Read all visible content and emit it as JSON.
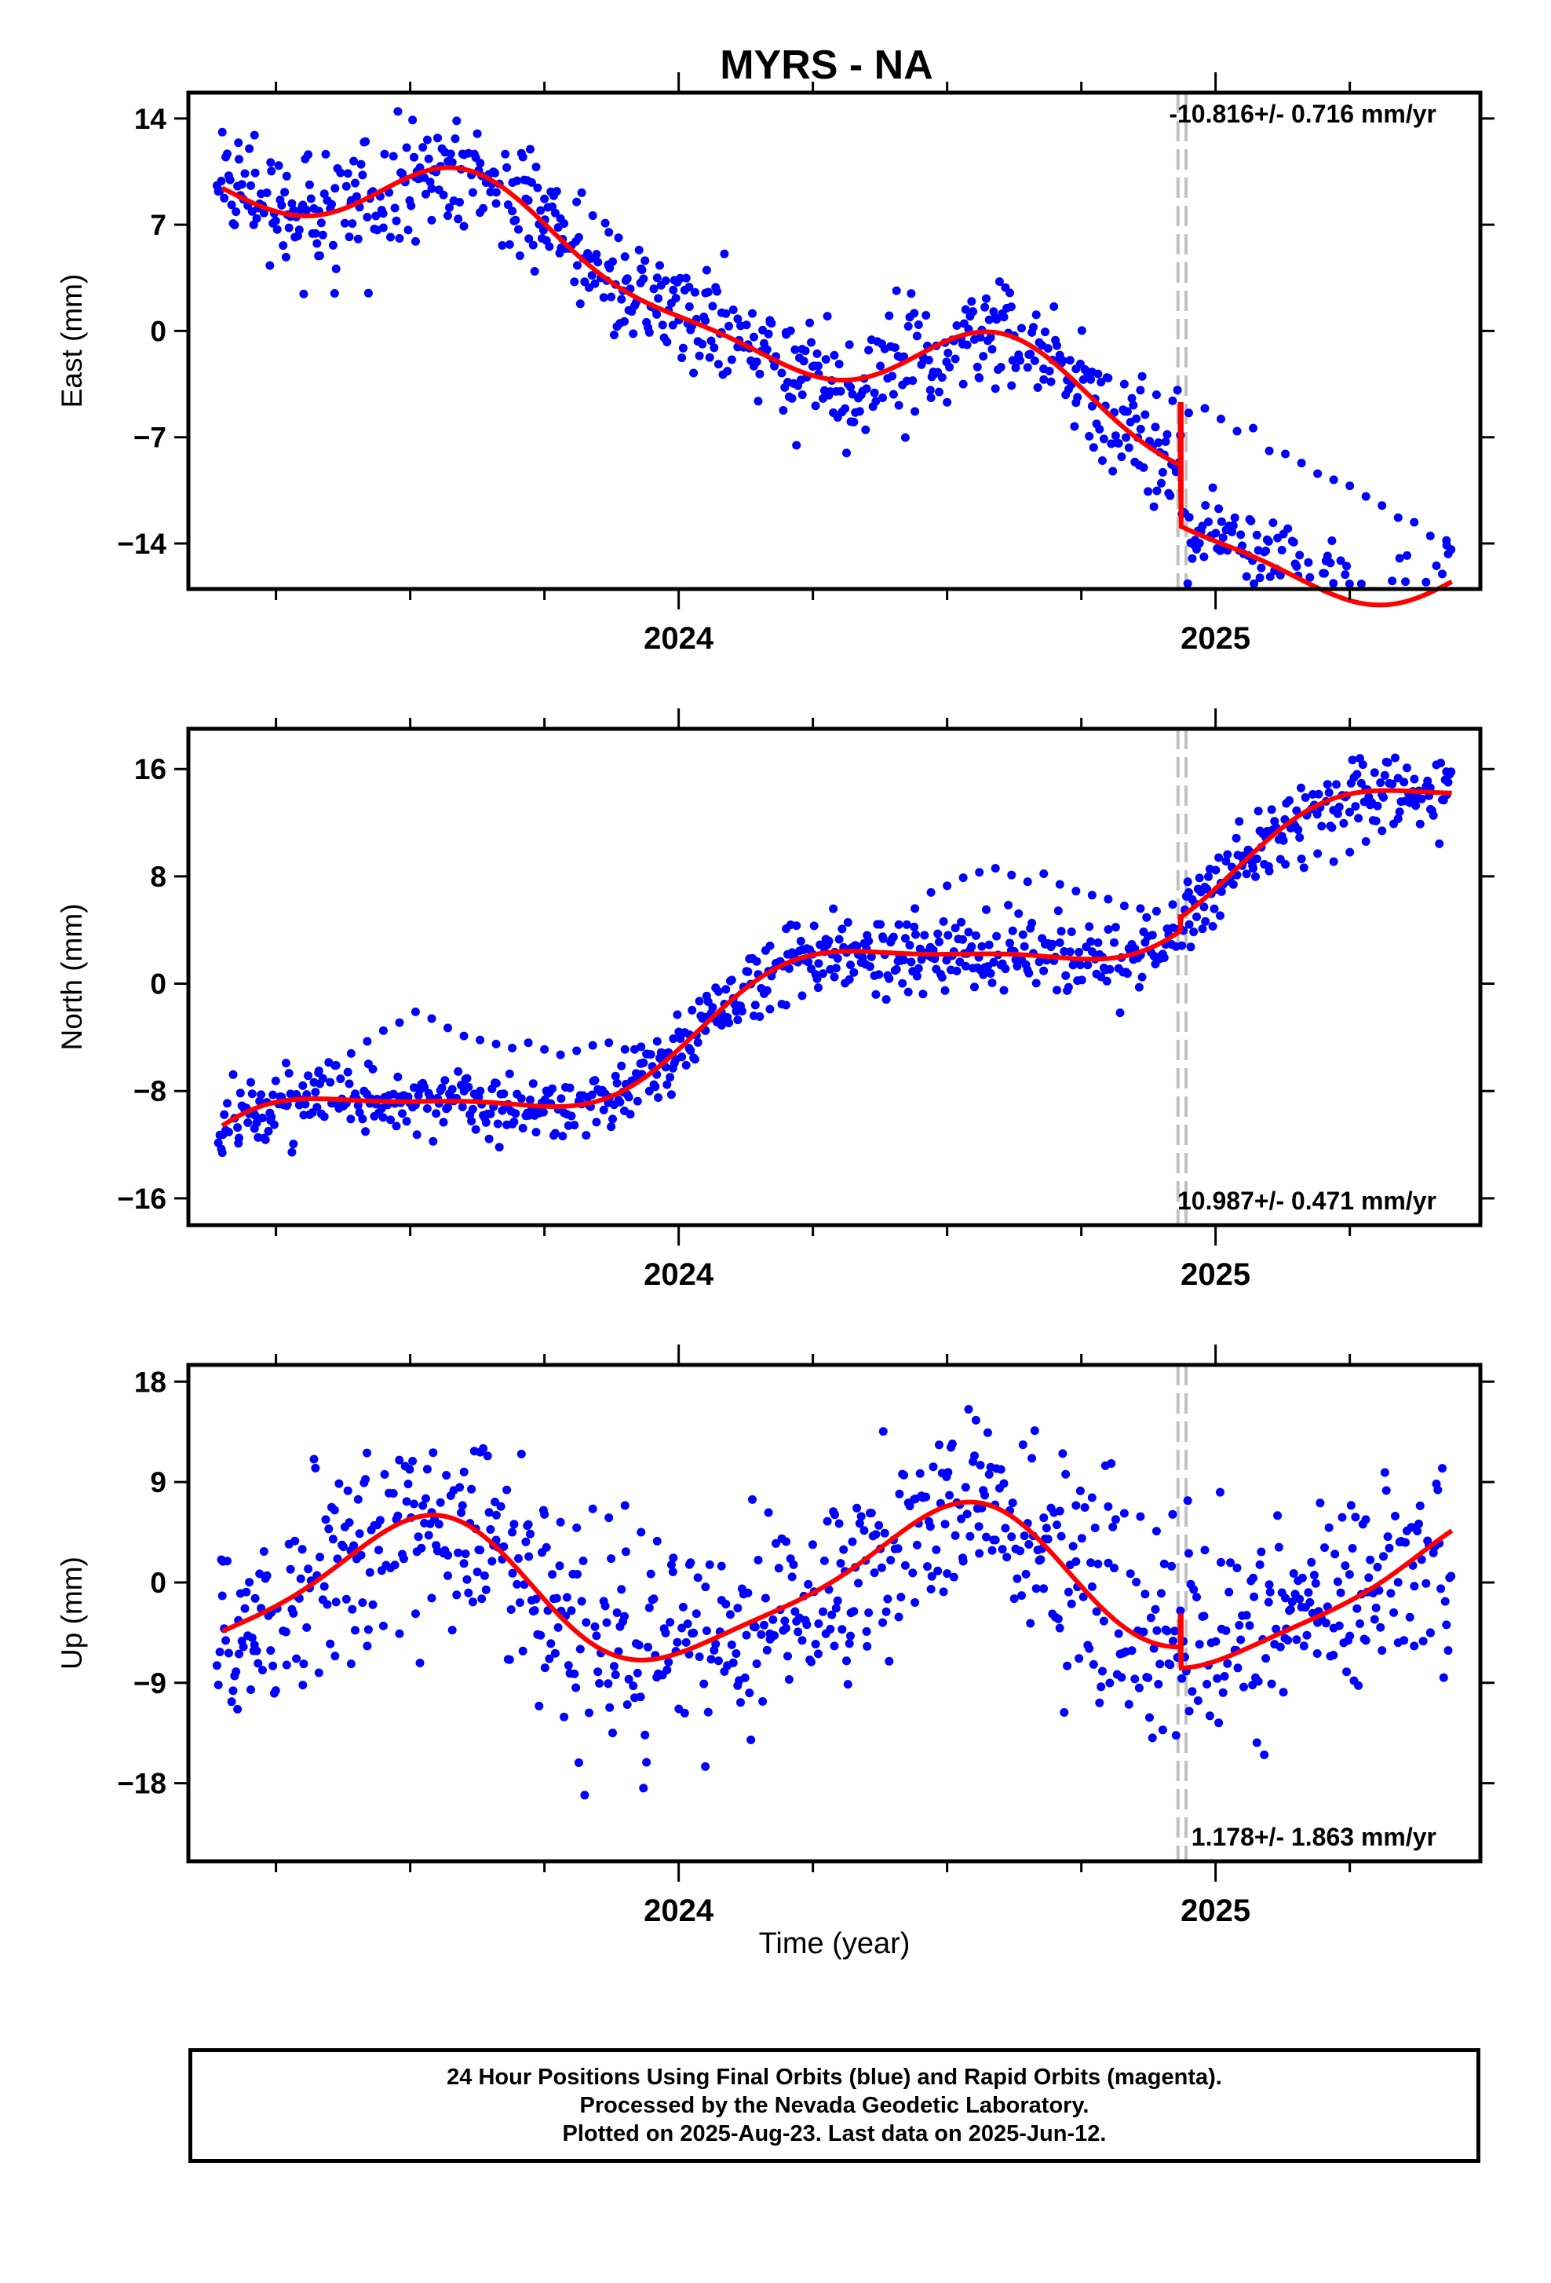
{
  "title": "MYRS - NA",
  "xlabel": "Time (year)",
  "footer": {
    "line1": "24 Hour Positions Using Final Orbits (blue) and Rapid Orbits (magenta).",
    "line2": "Processed by the Nevada Geodetic Laboratory.",
    "line3": "Plotted on 2025-Aug-23. Last data on 2025-Jun-12."
  },
  "colors": {
    "final_orbits": "#0000ff",
    "model_fit": "#ff0000",
    "equipment_change": "#c0c0c0",
    "axes": "#000000"
  },
  "chart_data": [
    {
      "type": "scatter",
      "component": "East",
      "ylabel": "East (mm)",
      "xlim": [
        2023.1,
        2025.48
      ],
      "ylim": [
        -17,
        15.7
      ],
      "yticks": [
        14,
        7,
        0,
        -7,
        -14
      ],
      "xticks": [
        2024,
        2025
      ],
      "grid": false,
      "rate_label": "-10.816+/- 0.716 mm/yr",
      "rate_position": "top-right",
      "equipment_change": [
        2024.93,
        2024.945
      ],
      "trend": {
        "slope": -10.816,
        "ref_time": 2024.2,
        "ref_value": 0.3,
        "offset_at_break": -4.0,
        "break_time": 2024.935
      },
      "seasonal": {
        "annual_sin": -2.3,
        "annual_cos": -1.9,
        "semiannual_sin": 0.9,
        "semiannual_cos": 0.4
      },
      "scatter_sigma": 1.8,
      "series": [
        {
          "name": "Final Orbits",
          "color": "#0000ff",
          "x": [
            2023.15,
            2023.18,
            2023.21,
            2023.24,
            2023.27,
            2023.3,
            2023.33,
            2023.36,
            2023.39,
            2023.42,
            2023.45,
            2023.48,
            2023.51,
            2023.54,
            2023.57,
            2023.6,
            2023.63,
            2023.66,
            2023.69,
            2023.72,
            2023.75,
            2023.78,
            2023.81,
            2023.84,
            2023.87,
            2023.9,
            2023.93,
            2023.96,
            2023.99,
            2024.02,
            2024.05,
            2024.08,
            2024.11,
            2024.14,
            2024.17,
            2024.2,
            2024.23,
            2024.26,
            2024.29,
            2024.32,
            2024.35,
            2024.38,
            2024.41,
            2024.44,
            2024.47,
            2024.5,
            2024.53,
            2024.56,
            2024.59,
            2024.62,
            2024.65,
            2024.68,
            2024.71,
            2024.74,
            2024.77,
            2024.8,
            2024.83,
            2024.86,
            2024.89,
            2024.92,
            2024.95,
            2024.98,
            2025.01,
            2025.04,
            2025.07,
            2025.1,
            2025.13,
            2025.16,
            2025.19,
            2025.22,
            2025.25,
            2025.28,
            2025.31,
            2025.34,
            2025.37,
            2025.4,
            2025.43
          ],
          "values": [
            13.1,
            12.4,
            12.9,
            11.1,
            10.2,
            8.3,
            7.9,
            9.4,
            8.6,
            7.5,
            6.8,
            6.1,
            5.9,
            7.3,
            7.6,
            6.9,
            7.8,
            8.4,
            7.9,
            8.6,
            8.7,
            7.4,
            8.5,
            7.6,
            6.5,
            4.9,
            4.1,
            3.5,
            2.7,
            1.6,
            2.5,
            1.2,
            0.8,
            -0.4,
            0.7,
            -0.1,
            -1.2,
            -2.3,
            -1.6,
            -3.7,
            -3.8,
            -4.4,
            -4.9,
            -5.3,
            -4.4,
            -4.7,
            -3.5,
            -3.1,
            -3.8,
            -3.6,
            -2.4,
            -3.2,
            -2.1,
            -2.5,
            -2.7,
            -3.1,
            -3.5,
            -3.9,
            -4.2,
            -4.6,
            -5.4,
            -5.1,
            -5.8,
            -6.6,
            -6.4,
            -7.9,
            -8.1,
            -8.7,
            -9.4,
            -9.8,
            -10.2,
            -10.9,
            -11.5,
            -12.3,
            -12.6,
            -13.5,
            -13.8
          ]
        }
      ]
    },
    {
      "type": "scatter",
      "component": "North",
      "ylabel": "North (mm)",
      "xlim": [
        2023.1,
        2025.48
      ],
      "ylim": [
        -18,
        19
      ],
      "yticks": [
        16,
        8,
        0,
        -8,
        -16
      ],
      "xticks": [
        2024,
        2025
      ],
      "grid": false,
      "rate_label": "10.987+/- 0.471 mm/yr",
      "rate_position": "bottom-right",
      "equipment_change": [
        2024.93,
        2024.945
      ],
      "trend": {
        "slope": 10.987,
        "ref_time": 2024.2,
        "ref_value": -1.6,
        "offset_at_break": 1.0,
        "break_time": 2024.935
      },
      "seasonal": {
        "annual_sin": 2.9,
        "annual_cos": -0.8,
        "semiannual_sin": 0.6,
        "semiannual_cos": -0.3
      },
      "scatter_sigma": 1.3,
      "series": [
        {
          "name": "Final Orbits",
          "color": "#0000ff",
          "x": [
            2023.15,
            2023.18,
            2023.21,
            2023.24,
            2023.27,
            2023.3,
            2023.33,
            2023.36,
            2023.39,
            2023.42,
            2023.45,
            2023.48,
            2023.51,
            2023.54,
            2023.57,
            2023.6,
            2023.63,
            2023.66,
            2023.69,
            2023.72,
            2023.75,
            2023.78,
            2023.81,
            2023.84,
            2023.87,
            2023.9,
            2023.93,
            2023.96,
            2023.99,
            2024.02,
            2024.05,
            2024.08,
            2024.11,
            2024.14,
            2024.17,
            2024.2,
            2024.23,
            2024.26,
            2024.29,
            2024.32,
            2024.35,
            2024.38,
            2024.41,
            2024.44,
            2024.47,
            2024.5,
            2024.53,
            2024.56,
            2024.59,
            2024.62,
            2024.65,
            2024.68,
            2024.71,
            2024.74,
            2024.77,
            2024.8,
            2024.83,
            2024.86,
            2024.89,
            2024.92,
            2024.95,
            2024.98,
            2025.01,
            2025.04,
            2025.07,
            2025.1,
            2025.13,
            2025.16,
            2025.19,
            2025.22,
            2025.25,
            2025.28,
            2025.31,
            2025.34,
            2025.37,
            2025.4,
            2025.43
          ],
          "values": [
            -12.6,
            -11.9,
            -10.8,
            -10.2,
            -9.1,
            -7.6,
            -6.5,
            -6.1,
            -5.2,
            -4.3,
            -3.5,
            -2.9,
            -2.1,
            -2.6,
            -3.3,
            -3.9,
            -4.2,
            -4.5,
            -4.8,
            -4.4,
            -4.9,
            -5.3,
            -5.0,
            -4.6,
            -4.4,
            -4.9,
            -4.7,
            -4.3,
            -4.1,
            -3.8,
            -3.5,
            -3.1,
            -2.7,
            -2.4,
            -1.9,
            -1.6,
            -0.9,
            -0.3,
            0.5,
            1.4,
            2.6,
            3.5,
            4.4,
            5.6,
            6.8,
            7.3,
            7.9,
            8.3,
            8.6,
            8.1,
            7.6,
            8.2,
            7.4,
            6.9,
            6.6,
            6.3,
            5.8,
            5.6,
            5.4,
            5.9,
            6.8,
            7.2,
            7.5,
            8.1,
            8.6,
            8.4,
            8.9,
            9.3,
            9.7,
            9.1,
            9.8,
            10.6,
            11.4,
            12.3,
            13.7,
            14.6,
            15.8
          ]
        }
      ]
    },
    {
      "type": "scatter",
      "component": "Up",
      "ylabel": "Up (mm)",
      "xlim": [
        2023.1,
        2025.48
      ],
      "ylim": [
        -25,
        19.5
      ],
      "yticks": [
        18,
        9,
        0,
        -9,
        -18
      ],
      "xticks": [
        2024,
        2025
      ],
      "grid": false,
      "rate_label": "1.178+/- 1.863 mm/yr",
      "rate_position": "bottom-right",
      "equipment_change": [
        2024.93,
        2024.945
      ],
      "trend": {
        "slope": 1.178,
        "ref_time": 2024.2,
        "ref_value": -0.4,
        "offset_at_break": -1.9,
        "break_time": 2024.935
      },
      "seasonal": {
        "annual_sin": 0.0,
        "annual_cos": -6.3,
        "semiannual_sin": 1.2,
        "semiannual_cos": 0.6
      },
      "scatter_sigma": 4.6,
      "series": [
        {
          "name": "Final Orbits",
          "color": "#0000ff",
          "x": [
            2023.15,
            2023.18,
            2023.21,
            2023.24,
            2023.27,
            2023.3,
            2023.33,
            2023.36,
            2023.39,
            2023.42,
            2023.45,
            2023.48,
            2023.51,
            2023.54,
            2023.57,
            2023.6,
            2023.63,
            2023.66,
            2023.69,
            2023.72,
            2023.75,
            2023.78,
            2023.81,
            2023.84,
            2023.87,
            2023.9,
            2023.93,
            2023.96,
            2023.99,
            2024.02,
            2024.05,
            2024.08,
            2024.11,
            2024.14,
            2024.17,
            2024.2,
            2024.23,
            2024.26,
            2024.29,
            2024.32,
            2024.35,
            2024.38,
            2024.41,
            2024.44,
            2024.47,
            2024.5,
            2024.53,
            2024.56,
            2024.59,
            2024.62,
            2024.65,
            2024.68,
            2024.71,
            2024.74,
            2024.77,
            2024.8,
            2024.83,
            2024.86,
            2024.89,
            2024.92,
            2024.95,
            2024.98,
            2025.01,
            2025.04,
            2025.07,
            2025.1,
            2025.13,
            2025.16,
            2025.19,
            2025.22,
            2025.25,
            2025.28,
            2025.31,
            2025.34,
            2025.37,
            2025.4,
            2025.43
          ],
          "values": [
            -1.2,
            -3.4,
            -5.6,
            -6.1,
            -7.4,
            -9.2,
            -8.1,
            -6.6,
            -7.3,
            -5.7,
            -3.9,
            -4.6,
            -2.8,
            -1.4,
            0.6,
            1.7,
            2.9,
            3.8,
            4.5,
            5.2,
            6.1,
            5.4,
            4.9,
            6.6,
            5.8,
            6.9,
            4.5,
            3.7,
            2.2,
            1.6,
            -0.4,
            -1.6,
            -2.3,
            -3.8,
            -4.6,
            -4.1,
            -5.2,
            -6.4,
            -5.7,
            -4.8,
            -4.4,
            -3.6,
            -3.1,
            -1.8,
            -0.6,
            0.8,
            1.9,
            2.6,
            3.8,
            4.1,
            5.3,
            5.8,
            6.4,
            6.9,
            7.6,
            6.8,
            6.2,
            5.9,
            4.6,
            6.1,
            2.6,
            2.9,
            1.8,
            1.3,
            0.4,
            -0.2,
            -1.4,
            -2.2,
            -3.6,
            -4.1,
            -4.8,
            -5.2,
            -6.1,
            -5.4,
            -5.7,
            -4.5,
            -3.8
          ]
        }
      ]
    }
  ]
}
